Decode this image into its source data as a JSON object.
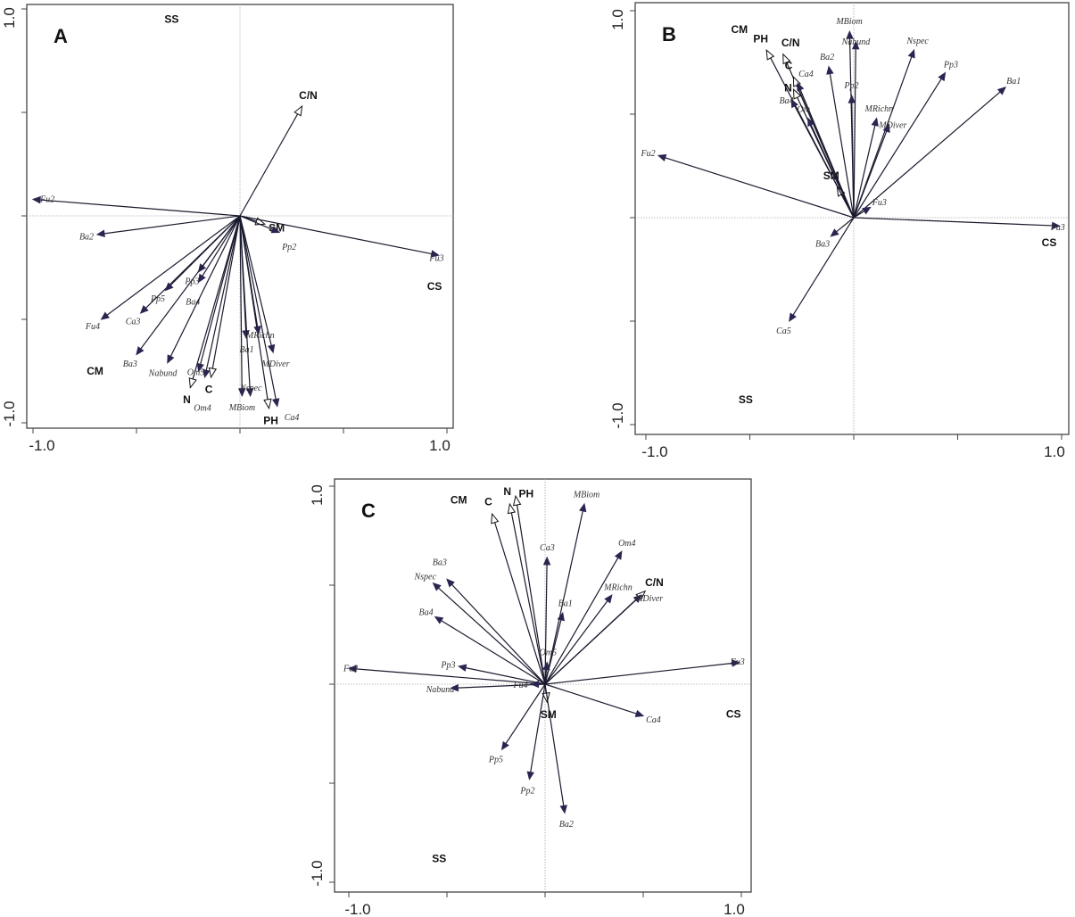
{
  "chart_data": [
    {
      "type": "scatter",
      "subtype": "biplot",
      "title": "A",
      "xlim": [
        -1.0,
        1.0
      ],
      "ylim": [
        -1.0,
        1.0
      ],
      "x_ticks": [
        "-1.0",
        "1.0"
      ],
      "y_ticks": [
        "1.0",
        "-1.0"
      ],
      "colors": {
        "species": "#2a2550",
        "environment": "#111111"
      },
      "species": [
        {
          "name": "Fu2",
          "x": -1.0,
          "y": 0.08
        },
        {
          "name": "Ba2",
          "x": -0.69,
          "y": -0.09
        },
        {
          "name": "Fu4",
          "x": -0.67,
          "y": -0.5
        },
        {
          "name": "Ca3",
          "x": -0.48,
          "y": -0.47
        },
        {
          "name": "Pp5",
          "x": -0.36,
          "y": -0.36
        },
        {
          "name": "Pp3",
          "x": -0.2,
          "y": -0.27
        },
        {
          "name": "Ba4",
          "x": -0.2,
          "y": -0.32
        },
        {
          "name": "Ba3",
          "x": -0.5,
          "y": -0.67
        },
        {
          "name": "Nabund",
          "x": -0.35,
          "y": -0.71
        },
        {
          "name": "Om5",
          "x": -0.2,
          "y": -0.75
        },
        {
          "name": "Om4",
          "x": -0.17,
          "y": -0.78
        },
        {
          "name": "Ba1",
          "x": 0.03,
          "y": -0.59
        },
        {
          "name": "MBiom",
          "x": 0.01,
          "y": -0.87
        },
        {
          "name": "Nspec",
          "x": 0.05,
          "y": -0.87
        },
        {
          "name": "MRichn",
          "x": 0.09,
          "y": -0.57
        },
        {
          "name": "MDiver",
          "x": 0.16,
          "y": -0.66
        },
        {
          "name": "Ca4",
          "x": 0.18,
          "y": -0.92
        },
        {
          "name": "Pp2",
          "x": 0.19,
          "y": -0.08
        },
        {
          "name": "Fu3",
          "x": 0.96,
          "y": -0.19
        }
      ],
      "environment": [
        {
          "name": "C/N",
          "x": 0.3,
          "y": 0.53
        },
        {
          "name": "SM",
          "x": 0.12,
          "y": -0.04
        },
        {
          "name": "N",
          "x": -0.24,
          "y": -0.83
        },
        {
          "name": "C",
          "x": -0.14,
          "y": -0.78
        },
        {
          "name": "PH",
          "x": 0.14,
          "y": -0.93
        }
      ],
      "centroids": [
        {
          "name": "SS",
          "x": -0.33,
          "y": 0.95
        },
        {
          "name": "CM",
          "x": -0.7,
          "y": -0.75
        },
        {
          "name": "CS",
          "x": 0.94,
          "y": -0.34
        }
      ]
    },
    {
      "type": "scatter",
      "subtype": "biplot",
      "title": "B",
      "xlim": [
        -1.0,
        1.0
      ],
      "ylim": [
        -1.0,
        1.0
      ],
      "x_ticks": [
        "-1.0",
        "1.0"
      ],
      "y_ticks": [
        "1.0",
        "-1.0"
      ],
      "colors": {
        "species": "#2a2550",
        "environment": "#111111"
      },
      "species": [
        {
          "name": "Fu2",
          "x": -0.94,
          "y": 0.3
        },
        {
          "name": "MBiom",
          "x": -0.02,
          "y": 0.9
        },
        {
          "name": "Nabund",
          "x": 0.01,
          "y": 0.85
        },
        {
          "name": "Ba2",
          "x": -0.12,
          "y": 0.73
        },
        {
          "name": "Pp2",
          "x": -0.01,
          "y": 0.59
        },
        {
          "name": "Nspec",
          "x": 0.29,
          "y": 0.81
        },
        {
          "name": "Pp3",
          "x": 0.44,
          "y": 0.7
        },
        {
          "name": "Ba1",
          "x": 0.73,
          "y": 0.63
        },
        {
          "name": "MRichn",
          "x": 0.11,
          "y": 0.48
        },
        {
          "name": "MDiver",
          "x": 0.17,
          "y": 0.45
        },
        {
          "name": "Ca4",
          "x": -0.27,
          "y": 0.65
        },
        {
          "name": "Ba4",
          "x": -0.3,
          "y": 0.57
        },
        {
          "name": "Om",
          "x": -0.22,
          "y": 0.48
        },
        {
          "name": "Fu3",
          "x": 0.08,
          "y": 0.05
        },
        {
          "name": "Fu3",
          "x": 0.99,
          "y": -0.04
        },
        {
          "name": "Ba3",
          "x": -0.11,
          "y": -0.09
        },
        {
          "name": "Ca5",
          "x": -0.31,
          "y": -0.5
        }
      ],
      "environment": [
        {
          "name": "PH",
          "x": -0.42,
          "y": 0.81
        },
        {
          "name": "C/N",
          "x": -0.34,
          "y": 0.79
        },
        {
          "name": "C",
          "x": -0.29,
          "y": 0.68
        },
        {
          "name": "N",
          "x": -0.29,
          "y": 0.62
        },
        {
          "name": "SM",
          "x": -0.08,
          "y": 0.15
        }
      ],
      "centroids": [
        {
          "name": "CM",
          "x": -0.55,
          "y": 0.91
        },
        {
          "name": "SS",
          "x": -0.52,
          "y": -0.88
        },
        {
          "name": "CS",
          "x": 0.94,
          "y": -0.12
        }
      ]
    },
    {
      "type": "scatter",
      "subtype": "biplot",
      "title": "C",
      "xlim": [
        -1.0,
        1.0
      ],
      "ylim": [
        -1.0,
        1.0
      ],
      "x_ticks": [
        "-1.0",
        "1.0"
      ],
      "y_ticks": [
        "1.0",
        "-1.0"
      ],
      "colors": {
        "species": "#2a2550",
        "environment": "#111111"
      },
      "species": [
        {
          "name": "Fu2",
          "x": -1.0,
          "y": 0.08
        },
        {
          "name": "Pp3",
          "x": -0.44,
          "y": 0.09
        },
        {
          "name": "Nabund",
          "x": -0.48,
          "y": -0.02
        },
        {
          "name": "Fu4",
          "x": -0.07,
          "y": 0.0
        },
        {
          "name": "Nspec",
          "x": -0.57,
          "y": 0.51
        },
        {
          "name": "Ba3",
          "x": -0.5,
          "y": 0.53
        },
        {
          "name": "Ba4",
          "x": -0.56,
          "y": 0.34
        },
        {
          "name": "MBiom",
          "x": 0.2,
          "y": 0.91
        },
        {
          "name": "Ca3",
          "x": 0.01,
          "y": 0.64
        },
        {
          "name": "Om4",
          "x": 0.39,
          "y": 0.67
        },
        {
          "name": "Ba1",
          "x": 0.09,
          "y": 0.36
        },
        {
          "name": "MRichn",
          "x": 0.34,
          "y": 0.45
        },
        {
          "name": "MDiver",
          "x": 0.49,
          "y": 0.45
        },
        {
          "name": "Om5",
          "x": 0.01,
          "y": 0.11
        },
        {
          "name": "Fu3",
          "x": 0.99,
          "y": 0.11
        },
        {
          "name": "Ca4",
          "x": 0.5,
          "y": -0.16
        },
        {
          "name": "Pp5",
          "x": -0.22,
          "y": -0.33
        },
        {
          "name": "Pp2",
          "x": -0.08,
          "y": -0.48
        },
        {
          "name": "Ba2",
          "x": 0.1,
          "y": -0.65
        }
      ],
      "environment": [
        {
          "name": "C",
          "x": -0.27,
          "y": 0.86
        },
        {
          "name": "N",
          "x": -0.18,
          "y": 0.91
        },
        {
          "name": "PH",
          "x": -0.15,
          "y": 0.95
        },
        {
          "name": "C/N",
          "x": 0.51,
          "y": 0.47
        },
        {
          "name": "SM",
          "x": 0.01,
          "y": -0.09
        }
      ],
      "centroids": [
        {
          "name": "CM",
          "x": -0.44,
          "y": 0.93
        },
        {
          "name": "SS",
          "x": -0.54,
          "y": -0.88
        },
        {
          "name": "CS",
          "x": 0.96,
          "y": -0.15
        }
      ]
    }
  ]
}
